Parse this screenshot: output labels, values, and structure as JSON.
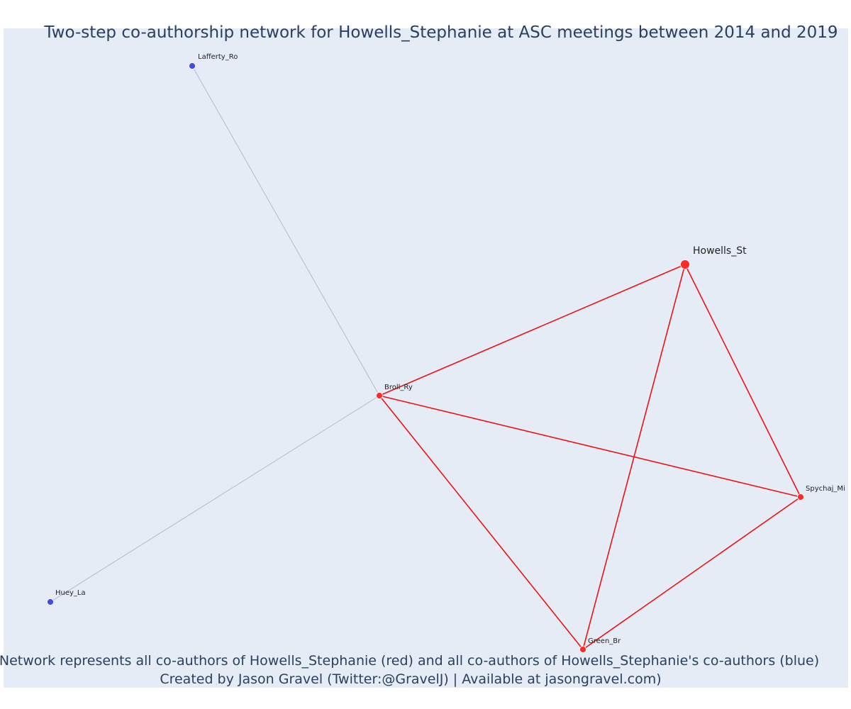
{
  "title": "Two-step co-authorship network for Howells_Stephanie at ASC meetings between 2014 and 2019",
  "caption": {
    "line1": "Network represents all co-authors of Howells_Stephanie (red) and all co-authors of Howells_Stephanie's co-authors (blue)",
    "line2": "Created by Jason Gravel (Twitter:@GravelJ) | Available at jasongravel.com)"
  },
  "colors": {
    "plot_background": "#e5ecf6",
    "first_step": "#ff2a2a",
    "second_step": "#3b4cf0",
    "first_step_edge": "#ee1111",
    "second_step_edge": "#b4b9cf"
  },
  "nodes": [
    {
      "id": "Howells_St",
      "label": "Howells_St",
      "group": "focal"
    },
    {
      "id": "Broll_Ry",
      "label": "Broll_Ry",
      "group": "coauthor"
    },
    {
      "id": "Spychaj_Mi",
      "label": "Spychaj_Mi",
      "group": "coauthor"
    },
    {
      "id": "Green_Br",
      "label": "Green_Br",
      "group": "coauthor"
    },
    {
      "id": "Lafferty_Ro",
      "label": "Lafferty_Ro",
      "group": "second"
    },
    {
      "id": "Huey_La",
      "label": "Huey_La",
      "group": "second"
    }
  ],
  "edges": [
    {
      "source": "Howells_St",
      "target": "Broll_Ry",
      "type": "first"
    },
    {
      "source": "Howells_St",
      "target": "Spychaj_Mi",
      "type": "first"
    },
    {
      "source": "Howells_St",
      "target": "Green_Br",
      "type": "first"
    },
    {
      "source": "Broll_Ry",
      "target": "Spychaj_Mi",
      "type": "first"
    },
    {
      "source": "Broll_Ry",
      "target": "Green_Br",
      "type": "first"
    },
    {
      "source": "Spychaj_Mi",
      "target": "Green_Br",
      "type": "first"
    },
    {
      "source": "Broll_Ry",
      "target": "Lafferty_Ro",
      "type": "second"
    },
    {
      "source": "Broll_Ry",
      "target": "Huey_La",
      "type": "second"
    }
  ]
}
